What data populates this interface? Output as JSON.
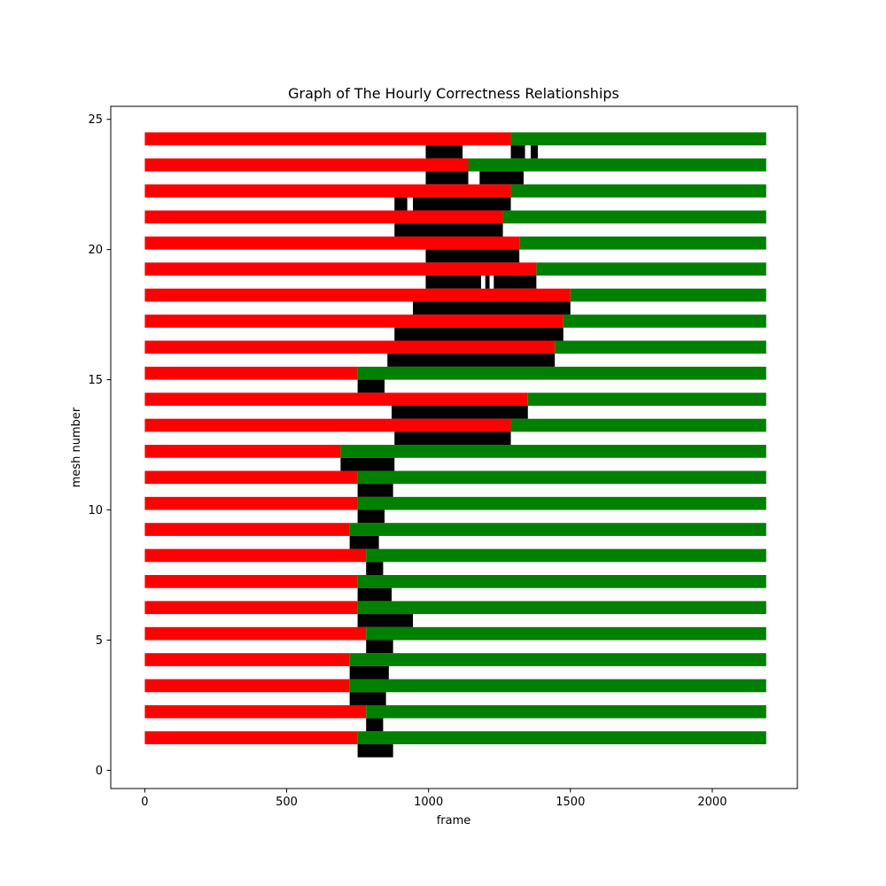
{
  "chart_data": {
    "type": "bar",
    "orientation": "horizontal",
    "title": "Graph of The Hourly Correctness Relationships",
    "xlabel": "frame",
    "ylabel": "mesh number",
    "xlim": [
      -120,
      2300
    ],
    "ylim": [
      -0.7,
      25.5
    ],
    "xticks": [
      0,
      500,
      1000,
      1500,
      2000
    ],
    "yticks": [
      0,
      5,
      10,
      15,
      20,
      25
    ],
    "bar_height": 0.5,
    "series": [
      {
        "name": "red",
        "color": "#ff0000",
        "y": [
          1.25,
          2.25,
          3.25,
          4.25,
          5.25,
          6.25,
          7.25,
          8.25,
          9.25,
          10.25,
          11.25,
          12.25,
          13.25,
          14.25,
          15.25,
          16.25,
          17.25,
          18.25,
          19.25,
          20.25,
          21.25,
          22.25,
          23.25,
          24.25
        ],
        "start": [
          0,
          0,
          0,
          0,
          0,
          0,
          0,
          0,
          0,
          0,
          0,
          0,
          0,
          0,
          0,
          0,
          0,
          0,
          0,
          0,
          0,
          0,
          0,
          0
        ],
        "end": [
          750,
          780,
          722,
          722,
          780,
          750,
          750,
          780,
          722,
          750,
          750,
          690,
          1290,
          1350,
          750,
          1445,
          1475,
          1500,
          1380,
          1320,
          1262,
          1290,
          1140,
          1290
        ]
      },
      {
        "name": "green",
        "color": "#008000",
        "y": [
          1.25,
          2.25,
          3.25,
          4.25,
          5.25,
          6.25,
          7.25,
          8.25,
          9.25,
          10.25,
          11.25,
          12.25,
          13.25,
          14.25,
          15.25,
          16.25,
          17.25,
          18.25,
          19.25,
          20.25,
          21.25,
          22.25,
          23.25,
          24.25
        ],
        "start": [
          750,
          780,
          722,
          722,
          780,
          750,
          750,
          780,
          722,
          750,
          750,
          690,
          1290,
          1350,
          750,
          1445,
          1475,
          1500,
          1380,
          1320,
          1262,
          1290,
          1140,
          1290
        ],
        "end": [
          2190,
          2190,
          2190,
          2190,
          2190,
          2190,
          2190,
          2190,
          2190,
          2190,
          2190,
          2190,
          2190,
          2190,
          2190,
          2190,
          2190,
          2190,
          2190,
          2190,
          2190,
          2190,
          2190,
          2190
        ]
      },
      {
        "name": "black",
        "color": "#000000",
        "intervals": [
          {
            "y": 0.75,
            "start": 750,
            "end": 875
          },
          {
            "y": 1.75,
            "start": 780,
            "end": 840
          },
          {
            "y": 2.75,
            "start": 722,
            "end": 850
          },
          {
            "y": 3.75,
            "start": 722,
            "end": 860
          },
          {
            "y": 4.75,
            "start": 780,
            "end": 875
          },
          {
            "y": 5.75,
            "start": 750,
            "end": 945
          },
          {
            "y": 6.75,
            "start": 750,
            "end": 870
          },
          {
            "y": 7.75,
            "start": 780,
            "end": 840
          },
          {
            "y": 8.75,
            "start": 722,
            "end": 825
          },
          {
            "y": 9.75,
            "start": 750,
            "end": 845
          },
          {
            "y": 10.75,
            "start": 750,
            "end": 875
          },
          {
            "y": 11.75,
            "start": 690,
            "end": 880
          },
          {
            "y": 12.75,
            "start": 880,
            "end": 1290
          },
          {
            "y": 13.75,
            "start": 870,
            "end": 1350
          },
          {
            "y": 14.75,
            "start": 750,
            "end": 845
          },
          {
            "y": 15.75,
            "start": 855,
            "end": 1445
          },
          {
            "y": 16.75,
            "start": 880,
            "end": 1475
          },
          {
            "y": 17.75,
            "start": 945,
            "end": 1500
          },
          {
            "y": 18.75,
            "start": 990,
            "end": 1185
          },
          {
            "y": 18.75,
            "start": 1200,
            "end": 1215
          },
          {
            "y": 18.75,
            "start": 1230,
            "end": 1380
          },
          {
            "y": 19.75,
            "start": 990,
            "end": 1320
          },
          {
            "y": 20.75,
            "start": 880,
            "end": 1262
          },
          {
            "y": 21.75,
            "start": 880,
            "end": 925
          },
          {
            "y": 21.75,
            "start": 945,
            "end": 1290
          },
          {
            "y": 22.75,
            "start": 990,
            "end": 1140
          },
          {
            "y": 22.75,
            "start": 1180,
            "end": 1335
          },
          {
            "y": 23.75,
            "start": 990,
            "end": 1120
          },
          {
            "y": 23.75,
            "start": 1290,
            "end": 1340
          },
          {
            "y": 23.75,
            "start": 1360,
            "end": 1385
          }
        ]
      }
    ],
    "grid": false
  }
}
